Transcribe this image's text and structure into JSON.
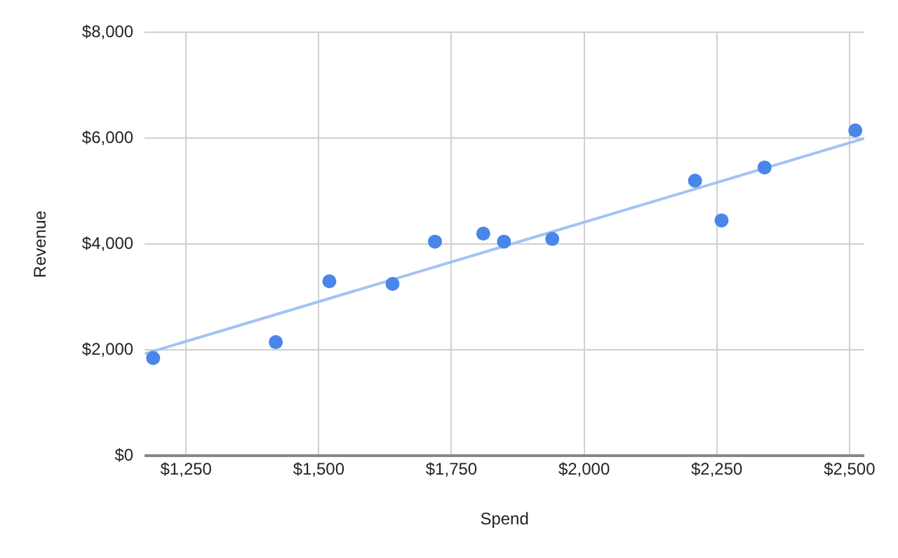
{
  "chart_data": {
    "type": "scatter",
    "xlabel": "Spend",
    "ylabel": "Revenue",
    "series": [
      {
        "type": "scatter",
        "marker": "circle",
        "color": "#4a86e8",
        "x": [
          1188,
          1419,
          1520,
          1639,
          1719,
          1810,
          1849,
          1940,
          2209,
          2259,
          2340,
          2511
        ],
        "values": [
          1850,
          2150,
          3300,
          3250,
          4050,
          4200,
          4050,
          4100,
          5200,
          4450,
          5450,
          6150
        ]
      },
      {
        "type": "line",
        "marker": "none",
        "color": "#a4c2f4",
        "x": [
          1172,
          2528
        ],
        "values": [
          1930,
          6000
        ]
      }
    ],
    "xlim": [
      1172,
      2528
    ],
    "xticks": [
      {
        "value": 1250,
        "label": "$1,250"
      },
      {
        "value": 1500,
        "label": "$1,500"
      },
      {
        "value": 1750,
        "label": "$1,750"
      },
      {
        "value": 2000,
        "label": "$2,000"
      },
      {
        "value": 2250,
        "label": "$2,250"
      },
      {
        "value": 2500,
        "label": "$2,500"
      }
    ],
    "ylim": [
      0,
      8000
    ],
    "yticks": [
      {
        "value": 0,
        "label": "$0"
      },
      {
        "value": 2000,
        "label": "$2,000"
      },
      {
        "value": 4000,
        "label": "$4,000"
      },
      {
        "value": 6000,
        "label": "$6,000"
      },
      {
        "value": 8000,
        "label": "$8,000"
      }
    ],
    "grid": true,
    "legend": false
  }
}
